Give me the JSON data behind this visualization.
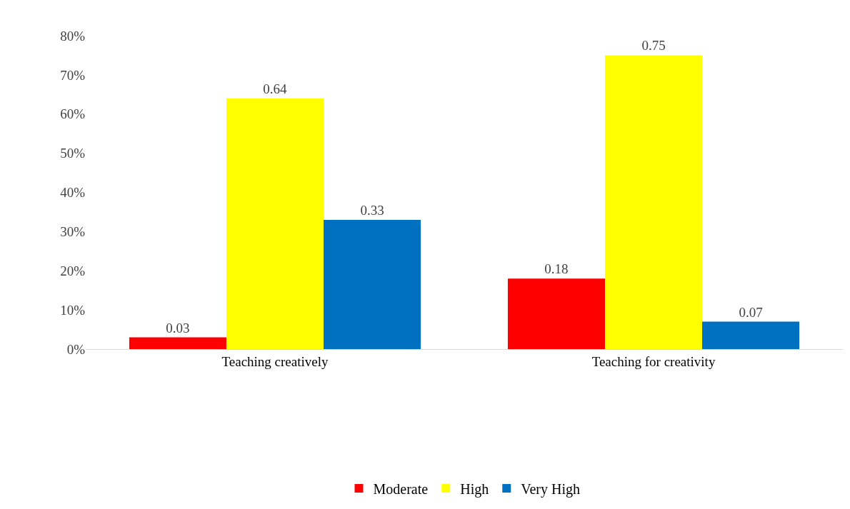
{
  "chart_data": {
    "type": "bar",
    "categories": [
      "Teaching creatively",
      "Teaching for creativity"
    ],
    "series": [
      {
        "name": "Moderate",
        "color": "#ff0000",
        "values": [
          0.03,
          0.18
        ]
      },
      {
        "name": "High",
        "color": "#ffff00",
        "values": [
          0.64,
          0.75
        ]
      },
      {
        "name": "Very High",
        "color": "#0070c0",
        "values": [
          0.33,
          0.07
        ]
      }
    ],
    "ylim": [
      0,
      0.8
    ],
    "yticks": [
      {
        "value": 0,
        "label": "0%"
      },
      {
        "value": 0.1,
        "label": "10%"
      },
      {
        "value": 0.2,
        "label": "20%"
      },
      {
        "value": 0.3,
        "label": "30%"
      },
      {
        "value": 0.4,
        "label": "40%"
      },
      {
        "value": 0.5,
        "label": "50%"
      },
      {
        "value": 0.6,
        "label": "60%"
      },
      {
        "value": 0.7,
        "label": "70%"
      },
      {
        "value": 0.8,
        "label": "80%"
      }
    ],
    "data_labels": true,
    "grid": false,
    "legend": "bottom"
  }
}
